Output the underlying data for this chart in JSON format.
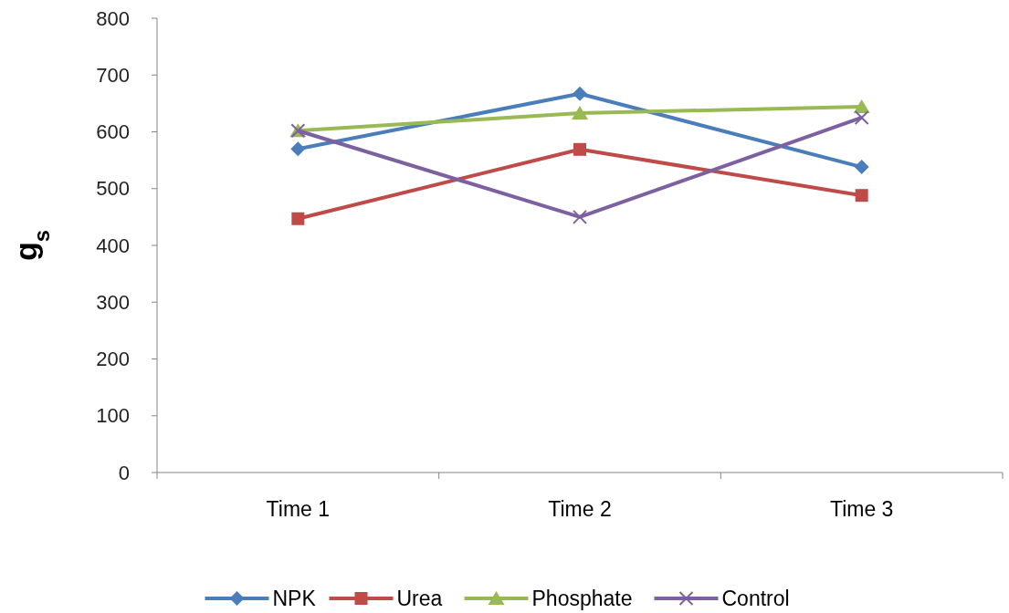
{
  "chart_data": {
    "type": "line",
    "ylabel": "g$_{s}$",
    "categories": [
      "Time 1",
      "Time 2",
      "Time 3"
    ],
    "ylim": [
      0,
      800
    ],
    "yticks": [
      0,
      100,
      200,
      300,
      400,
      500,
      600,
      700,
      800
    ],
    "grid": false,
    "legend": "bottom",
    "line_style": "solid",
    "series": [
      {
        "name": "NPK",
        "color": "#4a7ebb",
        "marker": "diamond",
        "values": [
          570,
          667,
          538
        ]
      },
      {
        "name": "Urea",
        "color": "#be4b48",
        "marker": "square",
        "values": [
          447,
          569,
          488
        ]
      },
      {
        "name": "Phosphate",
        "color": "#98b954",
        "marker": "triangle",
        "values": [
          602,
          633,
          644
        ]
      },
      {
        "name": "Control",
        "color": "#7d60a0",
        "marker": "cross",
        "values": [
          602,
          450,
          625
        ]
      }
    ]
  }
}
